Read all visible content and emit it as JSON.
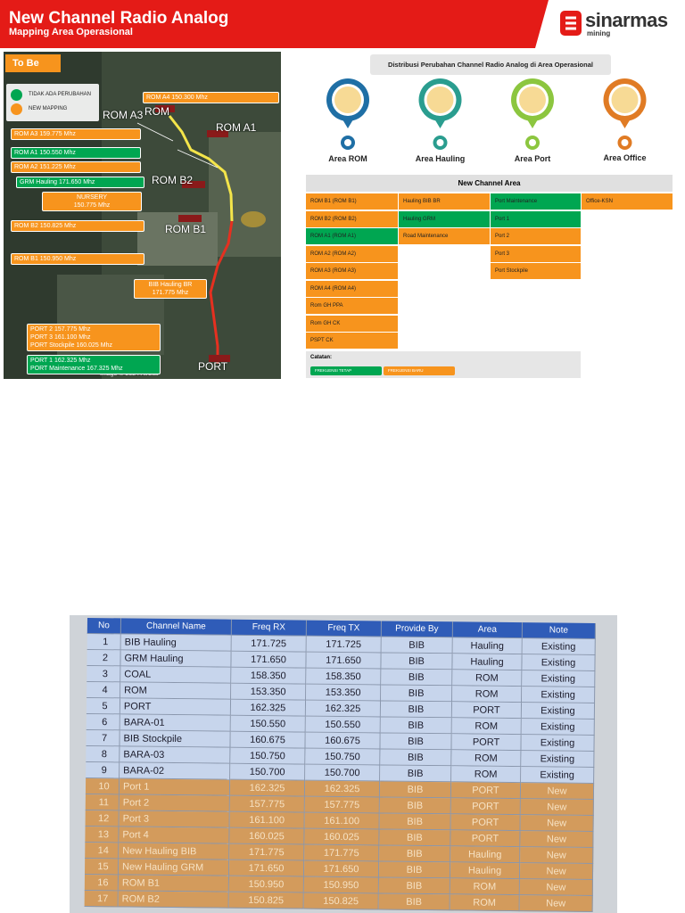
{
  "header": {
    "title": "New Channel Radio Analog",
    "subtitle": "Mapping Area Operasional",
    "logo": "sinarmas",
    "logo_sub": "mining",
    "color": "#e41b17"
  },
  "map": {
    "tag": "To Be",
    "legend": [
      {
        "label": "TIDAK ADA PERUBAHAN",
        "color": "#00a651"
      },
      {
        "label": "NEW MAPPING",
        "color": "#f7941d"
      }
    ],
    "sites": [
      "ROM A3",
      "ROM",
      "ROM A1",
      "ROM B2",
      "ROM B1",
      "PORT"
    ],
    "credit": "Image © 2024 Airbus",
    "callouts": [
      {
        "lines": [
          "ROM A4 150.300 Mhz"
        ],
        "color": "#f7941d"
      },
      {
        "lines": [
          "ROM A3 159.775 Mhz"
        ],
        "color": "#f7941d"
      },
      {
        "lines": [
          "ROM A1 150.550 Mhz"
        ],
        "color": "#00a651"
      },
      {
        "lines": [
          "ROM A2 151.225 Mhz"
        ],
        "color": "#f7941d"
      },
      {
        "lines": [
          "GRM Hauling 171.650 Mhz"
        ],
        "color": "#00a651"
      },
      {
        "lines": [
          "NURSERY",
          "150.775 Mhz"
        ],
        "color": "#f7941d"
      },
      {
        "lines": [
          "ROM B2 150.825 Mhz"
        ],
        "color": "#f7941d"
      },
      {
        "lines": [
          "ROM B1 150.950 Mhz"
        ],
        "color": "#f7941d"
      },
      {
        "lines": [
          "BIB Hauling BR",
          "171.775 Mhz"
        ],
        "color": "#f7941d"
      },
      {
        "lines": [
          "PORT 2 157.775 Mhz",
          "PORT 3 161.100 Mhz",
          "PORT Stockpile 160.025 Mhz"
        ],
        "color": "#f7941d"
      },
      {
        "lines": [
          "PORT 1 162.325 Mhz",
          "PORT Maintenance 167.325 Mhz"
        ],
        "color": "#00a651"
      }
    ]
  },
  "distribution": {
    "title": "Distribusi Perubahan Channel Radio Analog di Area Operasional",
    "areas": [
      {
        "label": "Area ROM",
        "color": "#1f6fa5"
      },
      {
        "label": "Area Hauling",
        "color": "#2a9d8f"
      },
      {
        "label": "Area Port",
        "color": "#8cc63f"
      },
      {
        "label": "Area Office",
        "color": "#e07b24"
      }
    ],
    "table_title": "New Channel Area",
    "columns": [
      [
        {
          "text": "ROM B1 (ROM B1)",
          "color": "#f7941d"
        },
        {
          "text": "ROM B2 (ROM B2)",
          "color": "#f7941d"
        },
        {
          "text": "ROM A1 (ROM A1)",
          "color": "#00a651"
        },
        {
          "text": "ROM A2 (ROM A2)",
          "color": "#f7941d"
        },
        {
          "text": "ROM A3 (ROM A3)",
          "color": "#f7941d"
        },
        {
          "text": "ROM A4 (ROM A4)",
          "color": "#f7941d"
        },
        {
          "text": "Rom GH PPA",
          "color": "#f7941d"
        },
        {
          "text": "Rom GH CK",
          "color": "#f7941d"
        },
        {
          "text": "PSPT CK",
          "color": "#f7941d"
        }
      ],
      [
        {
          "text": "Hauling BIB BR",
          "color": "#f7941d"
        },
        {
          "text": "Hauling GRM",
          "color": "#00a651"
        },
        {
          "text": "Road Maintenance",
          "color": "#f7941d"
        }
      ],
      [
        {
          "text": "Port Maintenance",
          "color": "#00a651"
        },
        {
          "text": "Port 1",
          "color": "#00a651"
        },
        {
          "text": "Port 2",
          "color": "#f7941d"
        },
        {
          "text": "Port 3",
          "color": "#f7941d"
        },
        {
          "text": "Port Stockpile",
          "color": "#f7941d"
        }
      ],
      [
        {
          "text": "Office-KSN",
          "color": "#f7941d"
        }
      ]
    ],
    "note_title": "Catatan:",
    "notes": [
      {
        "label": "FREKUENSI TETAP",
        "color": "#00a651"
      },
      {
        "label": "FREKUENSI BARU",
        "color": "#f7941d"
      }
    ]
  },
  "table": {
    "headers": [
      "No",
      "Channel Name",
      "Freq RX",
      "Freq TX",
      "Provide By",
      "Area",
      "Note"
    ],
    "rows": [
      {
        "cells": [
          "1",
          "BIB Hauling",
          "171.725",
          "171.725",
          "BIB",
          "Hauling",
          "Existing"
        ],
        "color": "#c7d5ec"
      },
      {
        "cells": [
          "2",
          "GRM Hauling",
          "171.650",
          "171.650",
          "BIB",
          "Hauling",
          "Existing"
        ],
        "color": "#c7d5ec"
      },
      {
        "cells": [
          "3",
          "COAL",
          "158.350",
          "158.350",
          "BIB",
          "ROM",
          "Existing"
        ],
        "color": "#c7d5ec"
      },
      {
        "cells": [
          "4",
          "ROM",
          "153.350",
          "153.350",
          "BIB",
          "ROM",
          "Existing"
        ],
        "color": "#c7d5ec"
      },
      {
        "cells": [
          "5",
          "PORT",
          "162.325",
          "162.325",
          "BIB",
          "PORT",
          "Existing"
        ],
        "color": "#c7d5ec"
      },
      {
        "cells": [
          "6",
          "BARA-01",
          "150.550",
          "150.550",
          "BIB",
          "ROM",
          "Existing"
        ],
        "color": "#c7d5ec"
      },
      {
        "cells": [
          "7",
          "BIB Stockpile",
          "160.675",
          "160.675",
          "BIB",
          "PORT",
          "Existing"
        ],
        "color": "#c7d5ec"
      },
      {
        "cells": [
          "8",
          "BARA-03",
          "150.750",
          "150.750",
          "BIB",
          "ROM",
          "Existing"
        ],
        "color": "#c7d5ec"
      },
      {
        "cells": [
          "9",
          "BARA-02",
          "150.700",
          "150.700",
          "BIB",
          "ROM",
          "Existing"
        ],
        "color": "#c7d5ec"
      },
      {
        "cells": [
          "10",
          "Port 1",
          "162.325",
          "162.325",
          "BIB",
          "PORT",
          "New"
        ],
        "color": "#d39b5c"
      },
      {
        "cells": [
          "11",
          "Port 2",
          "157.775",
          "157.775",
          "BIB",
          "PORT",
          "New"
        ],
        "color": "#d39b5c"
      },
      {
        "cells": [
          "12",
          "Port 3",
          "161.100",
          "161.100",
          "BIB",
          "PORT",
          "New"
        ],
        "color": "#d39b5c"
      },
      {
        "cells": [
          "13",
          "Port 4",
          "160.025",
          "160.025",
          "BIB",
          "PORT",
          "New"
        ],
        "color": "#d39b5c"
      },
      {
        "cells": [
          "14",
          "New Hauling BIB",
          "171.775",
          "171.775",
          "BIB",
          "Hauling",
          "New"
        ],
        "color": "#d39b5c"
      },
      {
        "cells": [
          "15",
          "New Hauling GRM",
          "171.650",
          "171.650",
          "BIB",
          "Hauling",
          "New"
        ],
        "color": "#d39b5c"
      },
      {
        "cells": [
          "16",
          "ROM B1",
          "150.950",
          "150.950",
          "BIB",
          "ROM",
          "New"
        ],
        "color": "#d39b5c"
      },
      {
        "cells": [
          "17",
          "ROM B2",
          "150.825",
          "150.825",
          "BIB",
          "ROM",
          "New"
        ],
        "color": "#d39b5c"
      }
    ]
  }
}
